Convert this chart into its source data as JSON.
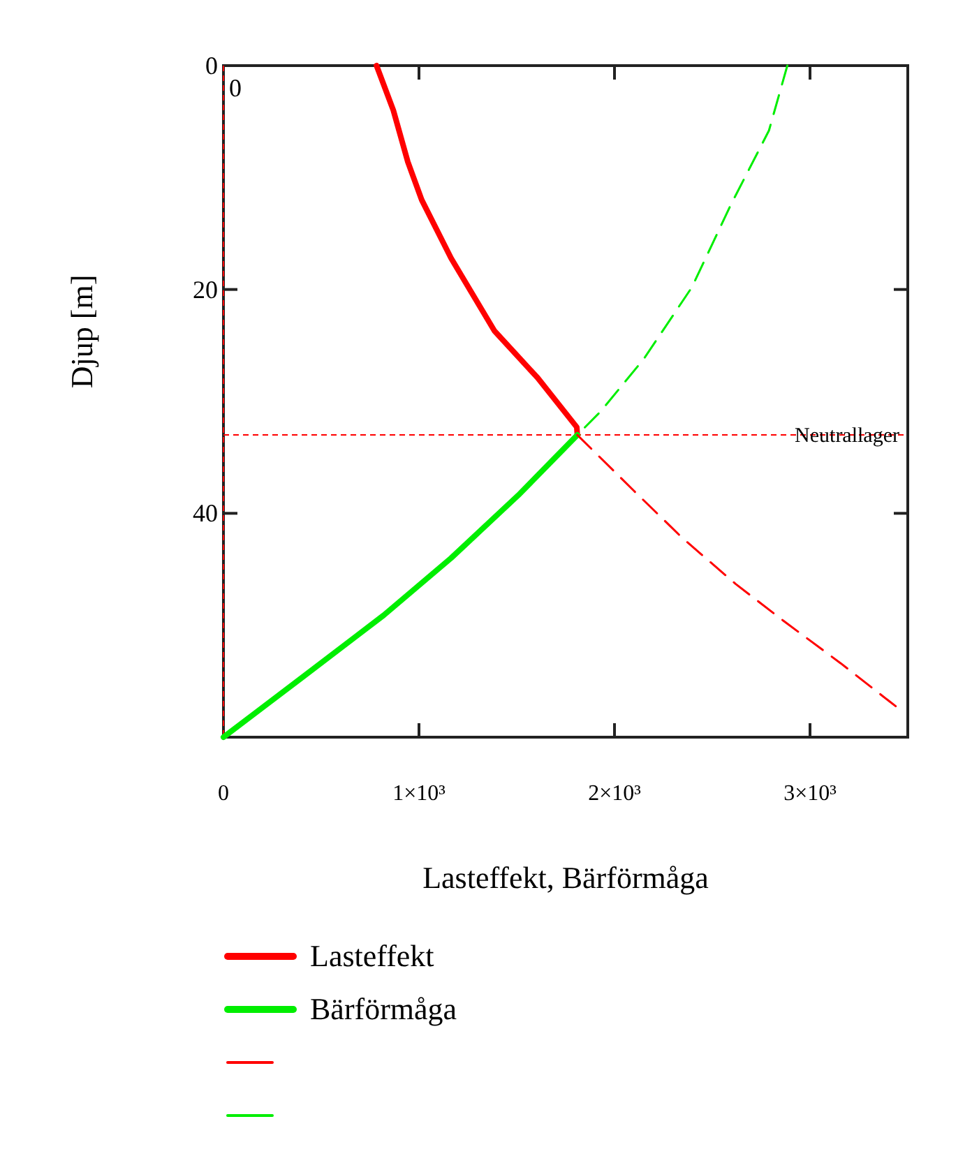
{
  "chart_data": {
    "type": "line",
    "xlabel": "Lasteffekt, Bärförmåga",
    "ylabel": "Djup [m]",
    "xlim": [
      0,
      3500
    ],
    "ylim": [
      60,
      0
    ],
    "xticks": [
      0,
      {
        "value": 1000,
        "label": "1×10³"
      },
      {
        "value": 2000,
        "label": "2×10³"
      },
      {
        "value": 3000,
        "label": "3×10³"
      }
    ],
    "yticks": [
      0,
      20,
      40
    ],
    "grid": false,
    "legend": "bottom",
    "ref_lines": [
      {
        "axis": "x",
        "value": 0,
        "label": "0",
        "color": "#ff0000",
        "line_style": "dashed"
      },
      {
        "axis": "y",
        "value": 33,
        "label": "Neutrallager",
        "color": "#ff0000",
        "line_style": "dashed"
      }
    ],
    "series": [
      {
        "name": "Lasteffekt",
        "color": "#ff0000",
        "line_style": "solid",
        "x": [
          783,
          869,
          943,
          1014,
          1164,
          1386,
          1607,
          1807,
          1810
        ],
        "values": [
          0,
          4,
          8.6,
          12,
          17.2,
          23.7,
          27.9,
          32.3,
          33
        ]
      },
      {
        "name": "Bärförmåga",
        "color": "#00ee00",
        "line_style": "solid",
        "x": [
          0,
          400,
          820,
          1164,
          1507,
          1810
        ],
        "values": [
          60,
          54.7,
          49.1,
          44,
          38.4,
          33
        ]
      },
      {
        "color": "#ff0000",
        "line_style": "dashed",
        "x": [
          1810,
          2100,
          2347,
          2619,
          2864,
          3157,
          3443
        ],
        "values": [
          33,
          38,
          42.2,
          46.3,
          49.6,
          53.4,
          57.3
        ]
      },
      {
        "color": "#00ee00",
        "line_style": "dashed",
        "x": [
          2884,
          2790,
          2593,
          2396,
          2150,
          1929,
          1810
        ],
        "values": [
          0,
          5.8,
          12.5,
          19.8,
          26.2,
          30.9,
          33
        ]
      }
    ]
  }
}
